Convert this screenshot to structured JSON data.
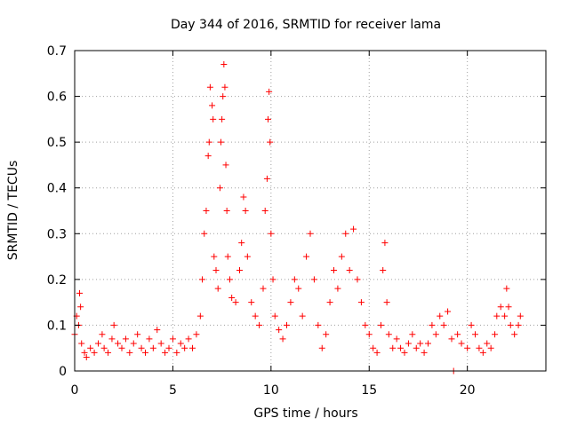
{
  "chart_data": {
    "type": "scatter",
    "title": "Day 344 of 2016, SRMTID for receiver lama",
    "xlabel": "GPS time / hours",
    "ylabel": "SRMTID / TECUs",
    "xlim": [
      0,
      24
    ],
    "ylim": [
      0,
      0.7
    ],
    "xticks": [
      "0",
      "5",
      "10",
      "15",
      "20"
    ],
    "yticks": [
      "0",
      "0.1",
      "0.2",
      "0.3",
      "0.4",
      "0.5",
      "0.6",
      "0.7"
    ],
    "grid": true,
    "marker": "+",
    "series": [
      {
        "name": "SRMTID",
        "color": "#ff0000",
        "points": [
          [
            0.0,
            0.08
          ],
          [
            0.1,
            0.12
          ],
          [
            0.2,
            0.1
          ],
          [
            0.25,
            0.17
          ],
          [
            0.3,
            0.14
          ],
          [
            0.35,
            0.06
          ],
          [
            0.5,
            0.04
          ],
          [
            0.6,
            0.03
          ],
          [
            0.8,
            0.05
          ],
          [
            1.0,
            0.04
          ],
          [
            1.2,
            0.06
          ],
          [
            1.4,
            0.08
          ],
          [
            1.5,
            0.05
          ],
          [
            1.7,
            0.04
          ],
          [
            1.9,
            0.07
          ],
          [
            2.0,
            0.1
          ],
          [
            2.2,
            0.06
          ],
          [
            2.4,
            0.05
          ],
          [
            2.6,
            0.07
          ],
          [
            2.8,
            0.04
          ],
          [
            3.0,
            0.06
          ],
          [
            3.2,
            0.08
          ],
          [
            3.4,
            0.05
          ],
          [
            3.6,
            0.04
          ],
          [
            3.8,
            0.07
          ],
          [
            4.0,
            0.05
          ],
          [
            4.2,
            0.09
          ],
          [
            4.4,
            0.06
          ],
          [
            4.6,
            0.04
          ],
          [
            4.8,
            0.05
          ],
          [
            5.0,
            0.07
          ],
          [
            5.2,
            0.04
          ],
          [
            5.4,
            0.06
          ],
          [
            5.6,
            0.05
          ],
          [
            5.8,
            0.07
          ],
          [
            6.0,
            0.05
          ],
          [
            6.2,
            0.08
          ],
          [
            6.4,
            0.12
          ],
          [
            6.5,
            0.2
          ],
          [
            6.6,
            0.3
          ],
          [
            6.7,
            0.35
          ],
          [
            6.8,
            0.47
          ],
          [
            6.85,
            0.5
          ],
          [
            6.9,
            0.62
          ],
          [
            7.0,
            0.58
          ],
          [
            7.05,
            0.55
          ],
          [
            7.1,
            0.25
          ],
          [
            7.2,
            0.22
          ],
          [
            7.3,
            0.18
          ],
          [
            7.4,
            0.4
          ],
          [
            7.45,
            0.5
          ],
          [
            7.5,
            0.55
          ],
          [
            7.55,
            0.6
          ],
          [
            7.6,
            0.67
          ],
          [
            7.65,
            0.62
          ],
          [
            7.7,
            0.45
          ],
          [
            7.75,
            0.35
          ],
          [
            7.8,
            0.25
          ],
          [
            7.9,
            0.2
          ],
          [
            8.0,
            0.16
          ],
          [
            8.2,
            0.15
          ],
          [
            8.4,
            0.22
          ],
          [
            8.5,
            0.28
          ],
          [
            8.6,
            0.38
          ],
          [
            8.7,
            0.35
          ],
          [
            8.8,
            0.25
          ],
          [
            9.0,
            0.15
          ],
          [
            9.2,
            0.12
          ],
          [
            9.4,
            0.1
          ],
          [
            9.6,
            0.18
          ],
          [
            9.7,
            0.35
          ],
          [
            9.8,
            0.42
          ],
          [
            9.85,
            0.55
          ],
          [
            9.9,
            0.61
          ],
          [
            9.95,
            0.5
          ],
          [
            10.0,
            0.3
          ],
          [
            10.1,
            0.2
          ],
          [
            10.2,
            0.12
          ],
          [
            10.4,
            0.09
          ],
          [
            10.6,
            0.07
          ],
          [
            10.8,
            0.1
          ],
          [
            11.0,
            0.15
          ],
          [
            11.2,
            0.2
          ],
          [
            11.4,
            0.18
          ],
          [
            11.6,
            0.12
          ],
          [
            11.8,
            0.25
          ],
          [
            12.0,
            0.3
          ],
          [
            12.2,
            0.2
          ],
          [
            12.4,
            0.1
          ],
          [
            12.6,
            0.05
          ],
          [
            12.8,
            0.08
          ],
          [
            13.0,
            0.15
          ],
          [
            13.2,
            0.22
          ],
          [
            13.4,
            0.18
          ],
          [
            13.6,
            0.25
          ],
          [
            13.8,
            0.3
          ],
          [
            14.0,
            0.22
          ],
          [
            14.2,
            0.31
          ],
          [
            14.4,
            0.2
          ],
          [
            14.6,
            0.15
          ],
          [
            14.8,
            0.1
          ],
          [
            15.0,
            0.08
          ],
          [
            15.2,
            0.05
          ],
          [
            15.4,
            0.04
          ],
          [
            15.6,
            0.1
          ],
          [
            15.7,
            0.22
          ],
          [
            15.8,
            0.28
          ],
          [
            15.9,
            0.15
          ],
          [
            16.0,
            0.08
          ],
          [
            16.2,
            0.05
          ],
          [
            16.4,
            0.07
          ],
          [
            16.6,
            0.05
          ],
          [
            16.8,
            0.04
          ],
          [
            17.0,
            0.06
          ],
          [
            17.2,
            0.08
          ],
          [
            17.4,
            0.05
          ],
          [
            17.6,
            0.06
          ],
          [
            17.8,
            0.04
          ],
          [
            18.0,
            0.06
          ],
          [
            18.2,
            0.1
          ],
          [
            18.4,
            0.08
          ],
          [
            18.6,
            0.12
          ],
          [
            18.8,
            0.1
          ],
          [
            19.0,
            0.13
          ],
          [
            19.2,
            0.07
          ],
          [
            19.3,
            0.0
          ],
          [
            19.5,
            0.08
          ],
          [
            19.7,
            0.06
          ],
          [
            20.0,
            0.05
          ],
          [
            20.2,
            0.1
          ],
          [
            20.4,
            0.08
          ],
          [
            20.6,
            0.05
          ],
          [
            20.8,
            0.04
          ],
          [
            21.0,
            0.06
          ],
          [
            21.2,
            0.05
          ],
          [
            21.4,
            0.08
          ],
          [
            21.5,
            0.12
          ],
          [
            21.7,
            0.14
          ],
          [
            21.9,
            0.12
          ],
          [
            22.0,
            0.18
          ],
          [
            22.1,
            0.14
          ],
          [
            22.2,
            0.1
          ],
          [
            22.4,
            0.08
          ],
          [
            22.6,
            0.1
          ],
          [
            22.7,
            0.12
          ]
        ]
      }
    ]
  }
}
